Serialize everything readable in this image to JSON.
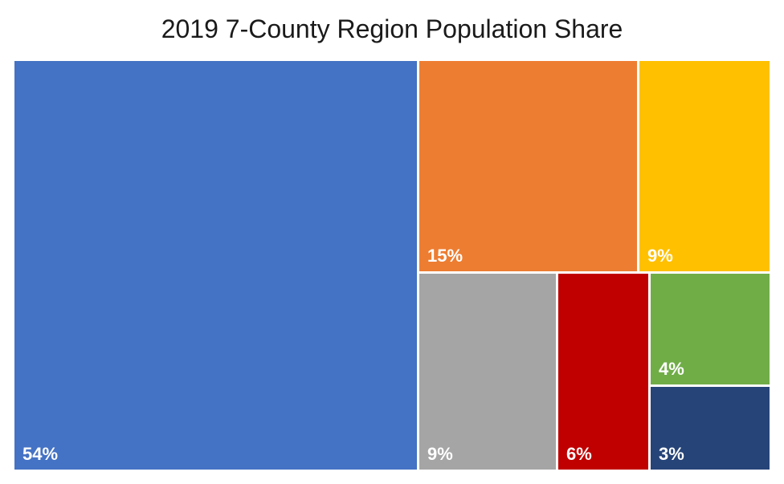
{
  "chart_data": {
    "type": "treemap",
    "title": "2019 7-County Region Population Share",
    "tiles": [
      {
        "label": "54%",
        "value": 54,
        "color": "#4472C4"
      },
      {
        "label": "15%",
        "value": 15,
        "color": "#ED7D31"
      },
      {
        "label": "9%",
        "value": 9,
        "color": "#FFC000"
      },
      {
        "label": "9%",
        "value": 9,
        "color": "#A5A5A5"
      },
      {
        "label": "6%",
        "value": 6,
        "color": "#C00000"
      },
      {
        "label": "4%",
        "value": 4,
        "color": "#70AD47"
      },
      {
        "label": "3%",
        "value": 3,
        "color": "#264478"
      }
    ],
    "legend": "none"
  }
}
